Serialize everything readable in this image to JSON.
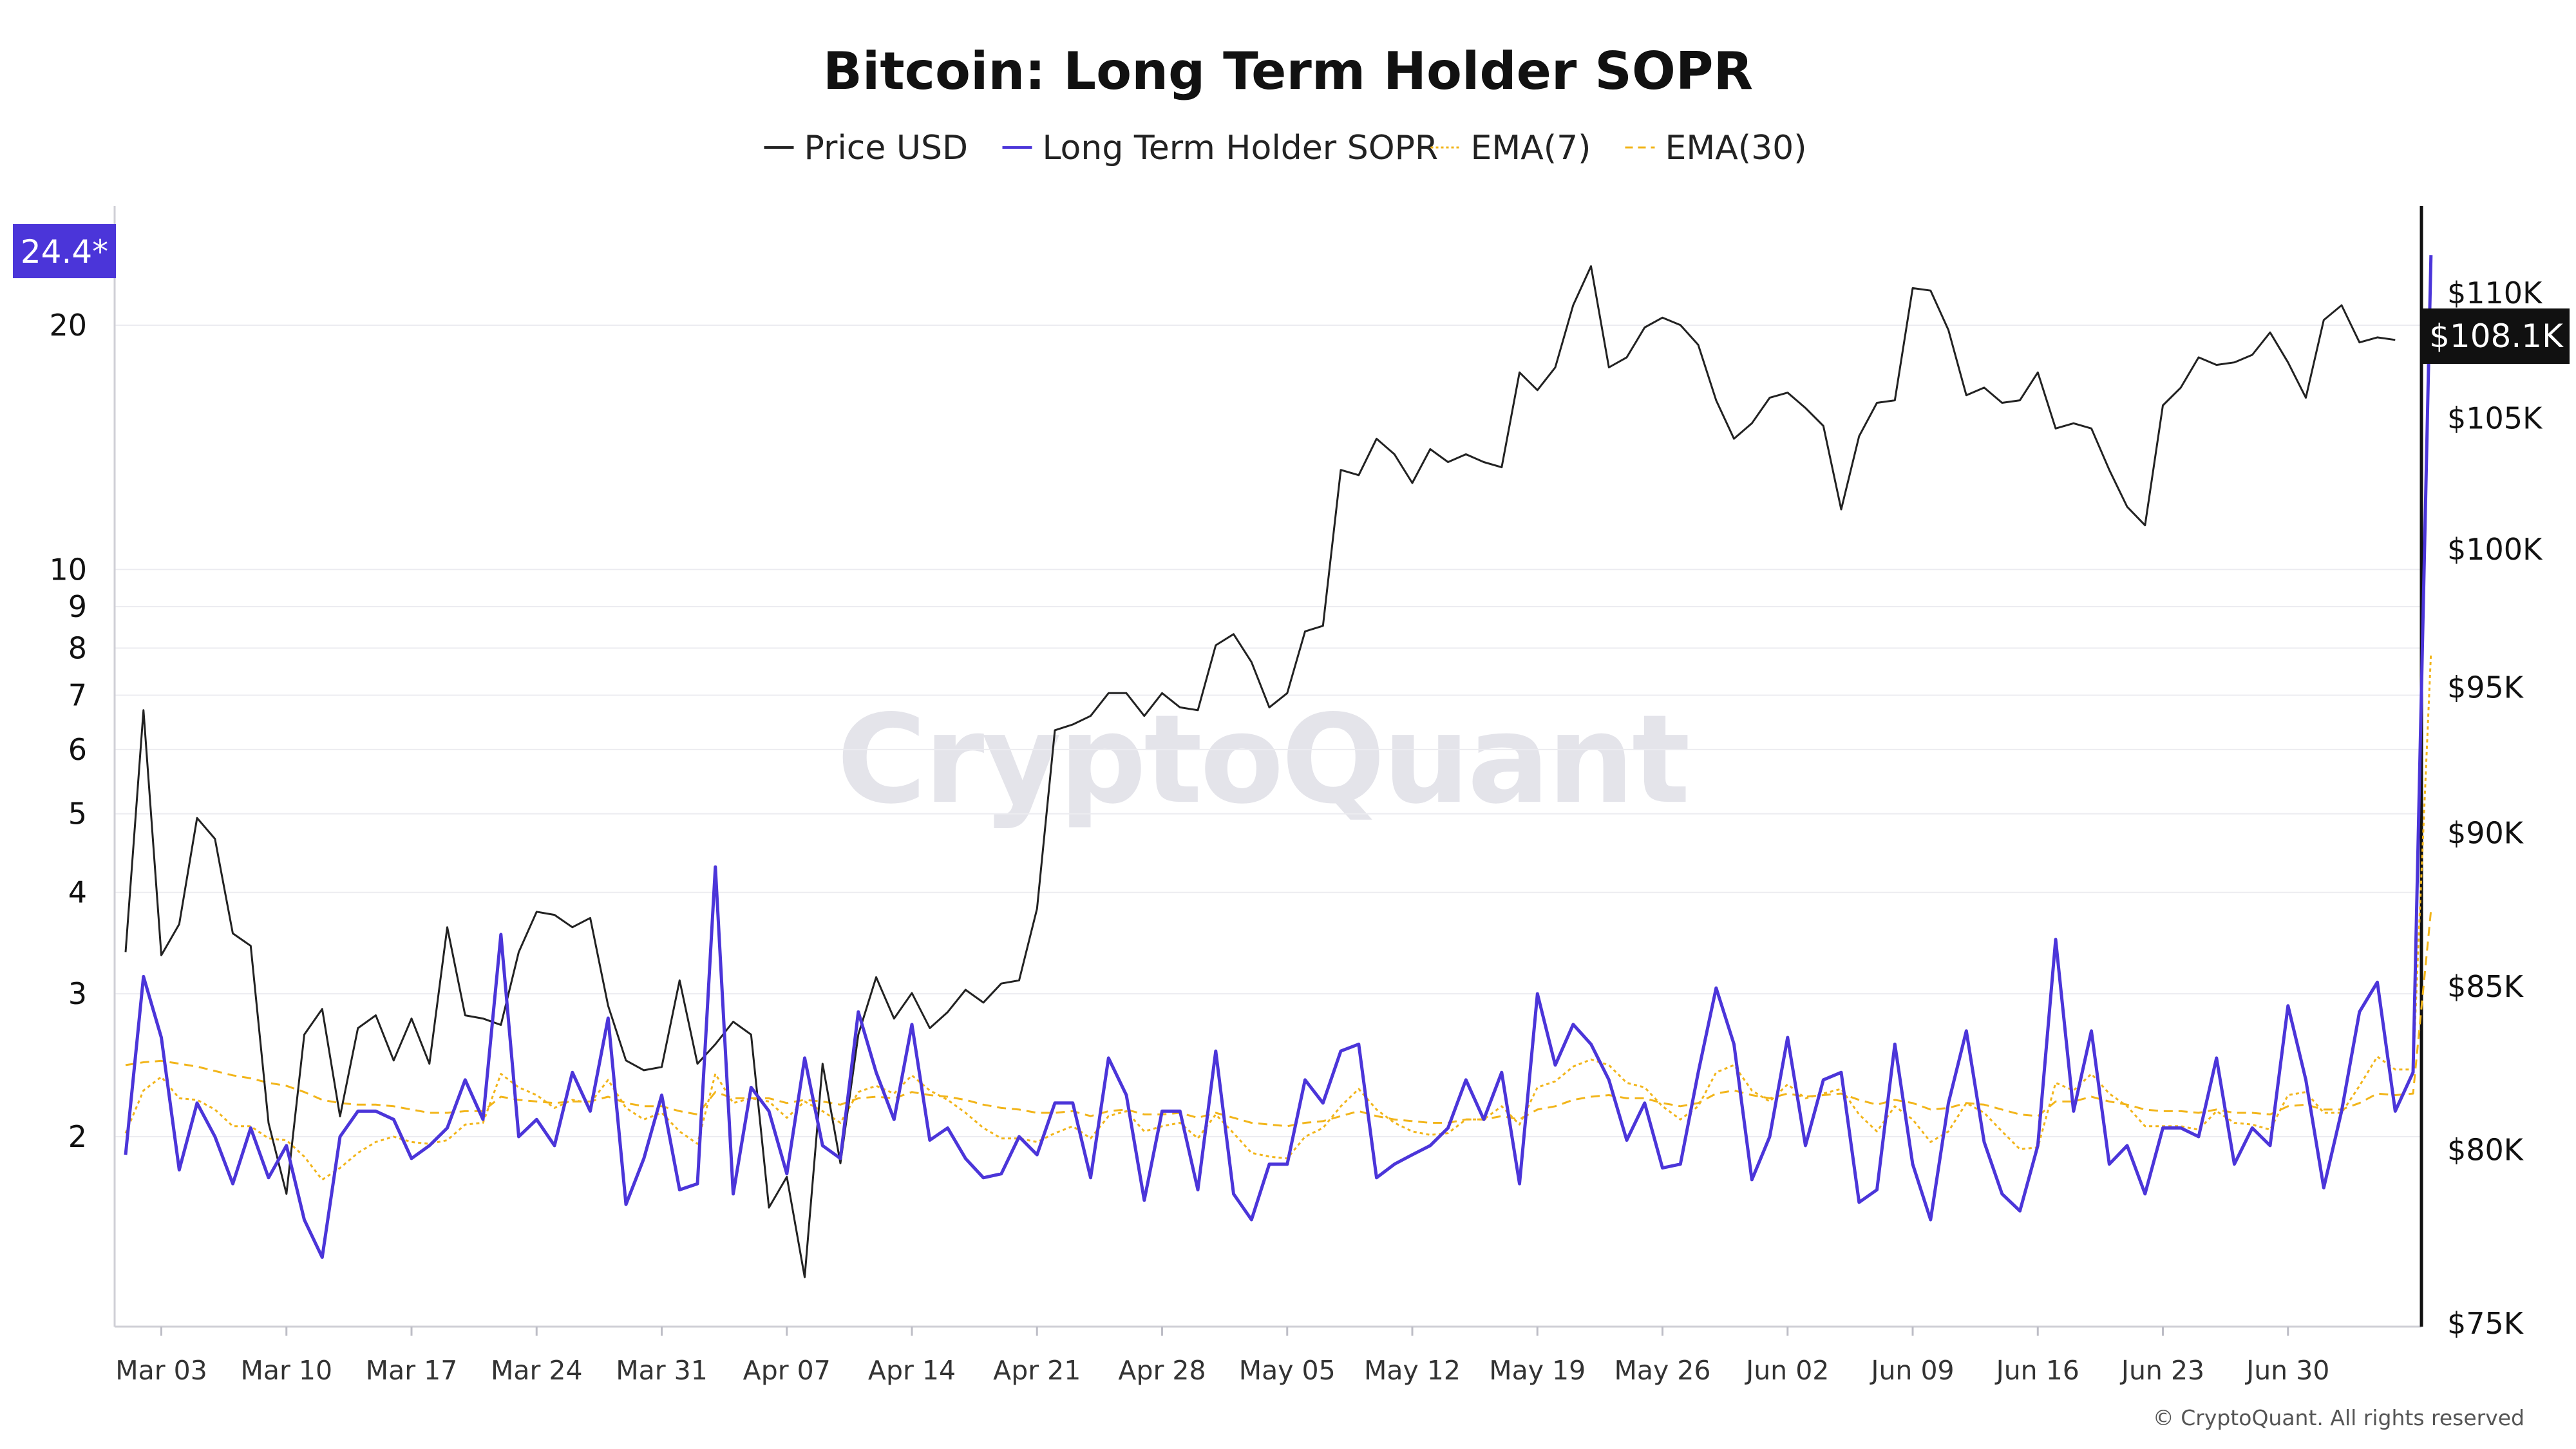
{
  "chart_data": {
    "type": "line",
    "title": "Bitcoin: Long Term Holder SOPR",
    "legend": [
      {
        "label": "Price USD",
        "color": "#222222",
        "style": "solid"
      },
      {
        "label": "Long Term Holder SOPR",
        "color": "#4B35D9",
        "style": "solid"
      },
      {
        "label": "EMA(7)",
        "color": "#F2B51A",
        "style": "dotted"
      },
      {
        "label": "EMA(30)",
        "color": "#F2B51A",
        "style": "dashed"
      }
    ],
    "legend_placement": "top-center",
    "watermark": "CryptoQuant",
    "copyright": "© CryptoQuant. All rights reserved",
    "x_axis": {
      "start_date": "2025-03-01",
      "tick_labels": [
        "Mar 03",
        "Mar 10",
        "Mar 17",
        "Mar 24",
        "Mar 31",
        "Apr 07",
        "Apr 14",
        "Apr 21",
        "Apr 28",
        "May 05",
        "May 12",
        "May 19",
        "May 26",
        "Jun 02",
        "Jun 09",
        "Jun 16",
        "Jun 23",
        "Jun 30"
      ],
      "tick_dates": [
        "2025-03-03",
        "2025-03-10",
        "2025-03-17",
        "2025-03-24",
        "2025-03-31",
        "2025-04-07",
        "2025-04-14",
        "2025-04-21",
        "2025-04-28",
        "2025-05-05",
        "2025-05-12",
        "2025-05-19",
        "2025-05-26",
        "2025-06-02",
        "2025-06-09",
        "2025-06-16",
        "2025-06-23",
        "2025-06-30"
      ]
    },
    "y_left": {
      "scale": "log",
      "tick_labels": [
        "20",
        "10",
        "9",
        "8",
        "7",
        "6",
        "5",
        "4",
        "3",
        "2"
      ],
      "tick_values": [
        20,
        10,
        9,
        8,
        7,
        6,
        5,
        4,
        3,
        2
      ],
      "range": [
        1.3,
        25
      ],
      "badge": "24.4*",
      "badge_color": "#4B35D9"
    },
    "y_right": {
      "scale": "log",
      "tick_labels": [
        "$110K",
        "$105K",
        "$100K",
        "$95K",
        "$90K",
        "$85K",
        "$80K",
        "$75K"
      ],
      "tick_values": [
        110000,
        105000,
        100000,
        95000,
        90000,
        85000,
        80000,
        75000
      ],
      "range": [
        75000,
        113000
      ],
      "badge": "$108.1K",
      "badge_color": "#111111"
    },
    "grid": "horizontal",
    "series": [
      {
        "name": "Price USD",
        "axis": "right",
        "color": "#222222",
        "values": [
          86100,
          94200,
          86000,
          87000,
          90500,
          89800,
          86700,
          86300,
          80800,
          78700,
          83500,
          84300,
          81000,
          83700,
          84100,
          82700,
          84000,
          82600,
          86900,
          84100,
          84000,
          83800,
          86100,
          87400,
          87300,
          86900,
          87200,
          84400,
          82700,
          82400,
          82500,
          85200,
          82600,
          83200,
          83900,
          83500,
          78300,
          79200,
          76300,
          82600,
          79600,
          83500,
          85300,
          84000,
          84800,
          83700,
          84200,
          84900,
          84500,
          85100,
          85200,
          87500,
          93500,
          93700,
          94000,
          94800,
          94800,
          94000,
          94800,
          94300,
          94200,
          96500,
          96900,
          95900,
          94300,
          94800,
          97000,
          97200,
          103000,
          102800,
          104200,
          103600,
          102500,
          103800,
          103300,
          103600,
          103300,
          103100,
          106800,
          106100,
          107000,
          109500,
          111100,
          107000,
          107400,
          108600,
          109000,
          108700,
          107900,
          105700,
          104200,
          104800,
          105800,
          106000,
          105400,
          104700,
          101500,
          104300,
          105600,
          105700,
          110200,
          110100,
          108500,
          105900,
          106200,
          105600,
          105700,
          106800,
          104600,
          104800,
          104600,
          103000,
          101600,
          100900,
          105500,
          106200,
          107400,
          107100,
          107200,
          107500,
          108400,
          107200,
          105800,
          108900,
          109500,
          108000,
          108200,
          108100
        ],
        "last_value_label": "$108.1K"
      },
      {
        "name": "Long Term Holder SOPR",
        "axis": "left",
        "color": "#4B35D9",
        "values": [
          1.9,
          3.15,
          2.65,
          1.82,
          2.2,
          2.0,
          1.75,
          2.05,
          1.78,
          1.95,
          1.58,
          1.42,
          2.0,
          2.15,
          2.15,
          2.1,
          1.88,
          1.95,
          2.05,
          2.35,
          2.1,
          3.55,
          2.0,
          2.1,
          1.95,
          2.4,
          2.15,
          2.8,
          1.65,
          1.88,
          2.25,
          1.72,
          1.75,
          4.3,
          1.7,
          2.3,
          2.15,
          1.8,
          2.5,
          1.95,
          1.88,
          2.85,
          2.4,
          2.1,
          2.75,
          1.98,
          2.05,
          1.88,
          1.78,
          1.8,
          2.0,
          1.9,
          2.2,
          2.2,
          1.78,
          2.5,
          2.25,
          1.67,
          2.15,
          2.15,
          1.72,
          2.55,
          1.7,
          1.58,
          1.85,
          1.85,
          2.35,
          2.2,
          2.55,
          2.6,
          1.78,
          1.85,
          1.9,
          1.95,
          2.05,
          2.35,
          2.1,
          2.4,
          1.75,
          3.0,
          2.45,
          2.75,
          2.6,
          2.35,
          1.98,
          2.2,
          1.83,
          1.85,
          2.4,
          3.05,
          2.6,
          1.77,
          2.0,
          2.65,
          1.95,
          2.35,
          2.4,
          1.66,
          1.72,
          2.6,
          1.85,
          1.58,
          2.2,
          2.7,
          1.97,
          1.7,
          1.62,
          1.95,
          3.5,
          2.15,
          2.7,
          1.85,
          1.95,
          1.7,
          2.05,
          2.05,
          2.0,
          2.5,
          1.85,
          2.05,
          1.95,
          2.9,
          2.35,
          1.73,
          2.15,
          2.85,
          3.1,
          2.15,
          2.4,
          24.4
        ],
        "last_value_label": "24.4*"
      },
      {
        "name": "EMA(7)",
        "axis": "left",
        "color": "#F2B51A",
        "values": [
          2.02,
          2.28,
          2.37,
          2.23,
          2.22,
          2.16,
          2.06,
          2.06,
          1.99,
          1.98,
          1.89,
          1.77,
          1.83,
          1.91,
          1.97,
          2.0,
          1.97,
          1.96,
          1.98,
          2.07,
          2.08,
          2.39,
          2.3,
          2.25,
          2.17,
          2.22,
          2.2,
          2.35,
          2.17,
          2.1,
          2.14,
          2.03,
          1.96,
          2.39,
          2.2,
          2.23,
          2.21,
          2.11,
          2.21,
          2.15,
          2.08,
          2.27,
          2.31,
          2.26,
          2.38,
          2.28,
          2.22,
          2.14,
          2.05,
          1.99,
          1.99,
          1.97,
          2.02,
          2.06,
          1.99,
          2.12,
          2.15,
          2.03,
          2.06,
          2.08,
          1.99,
          2.13,
          2.02,
          1.91,
          1.89,
          1.88,
          2.0,
          2.05,
          2.18,
          2.29,
          2.16,
          2.08,
          2.03,
          2.01,
          2.02,
          2.1,
          2.1,
          2.18,
          2.07,
          2.3,
          2.34,
          2.44,
          2.49,
          2.45,
          2.33,
          2.3,
          2.18,
          2.1,
          2.18,
          2.4,
          2.45,
          2.28,
          2.21,
          2.32,
          2.23,
          2.26,
          2.29,
          2.13,
          2.03,
          2.18,
          2.1,
          1.97,
          2.03,
          2.2,
          2.14,
          2.03,
          1.93,
          1.94,
          2.33,
          2.28,
          2.39,
          2.26,
          2.18,
          2.06,
          2.06,
          2.06,
          2.04,
          2.15,
          2.08,
          2.07,
          2.04,
          2.25,
          2.27,
          2.14,
          2.14,
          2.31,
          2.51,
          2.42,
          2.42,
          7.9
        ]
      },
      {
        "name": "EMA(30)",
        "axis": "left",
        "color": "#F2B51A",
        "values": [
          2.45,
          2.47,
          2.48,
          2.46,
          2.44,
          2.41,
          2.38,
          2.36,
          2.33,
          2.31,
          2.27,
          2.22,
          2.2,
          2.19,
          2.19,
          2.18,
          2.16,
          2.14,
          2.14,
          2.15,
          2.15,
          2.24,
          2.22,
          2.21,
          2.2,
          2.21,
          2.21,
          2.24,
          2.2,
          2.18,
          2.18,
          2.15,
          2.13,
          2.27,
          2.23,
          2.23,
          2.23,
          2.2,
          2.22,
          2.21,
          2.19,
          2.23,
          2.24,
          2.23,
          2.27,
          2.25,
          2.24,
          2.22,
          2.19,
          2.17,
          2.16,
          2.14,
          2.14,
          2.15,
          2.12,
          2.15,
          2.16,
          2.13,
          2.13,
          2.14,
          2.11,
          2.14,
          2.11,
          2.08,
          2.07,
          2.06,
          2.08,
          2.09,
          2.12,
          2.15,
          2.12,
          2.1,
          2.09,
          2.08,
          2.08,
          2.1,
          2.1,
          2.12,
          2.1,
          2.16,
          2.18,
          2.22,
          2.24,
          2.25,
          2.23,
          2.23,
          2.2,
          2.18,
          2.2,
          2.26,
          2.28,
          2.25,
          2.23,
          2.26,
          2.24,
          2.25,
          2.26,
          2.22,
          2.19,
          2.22,
          2.2,
          2.16,
          2.17,
          2.2,
          2.19,
          2.16,
          2.13,
          2.12,
          2.21,
          2.21,
          2.24,
          2.21,
          2.19,
          2.16,
          2.15,
          2.15,
          2.14,
          2.16,
          2.14,
          2.14,
          2.13,
          2.18,
          2.19,
          2.16,
          2.16,
          2.2,
          2.26,
          2.25,
          2.26,
          3.8
        ]
      }
    ]
  }
}
